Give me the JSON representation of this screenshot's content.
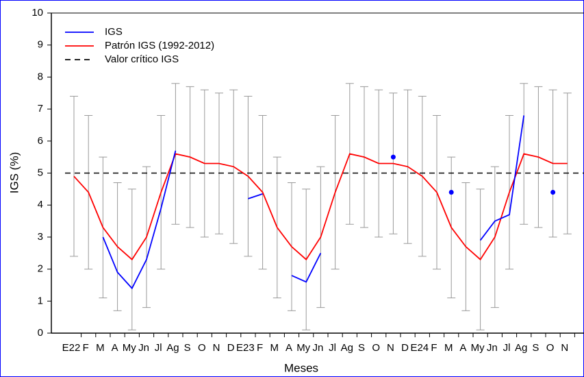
{
  "chart_data": {
    "type": "line",
    "y_label": "IGS (%)",
    "x_label": "Meses",
    "categories": [
      "E22",
      "F",
      "M",
      "A",
      "My",
      "Jn",
      "Jl",
      "Ag",
      "S",
      "O",
      "N",
      "D",
      "E23",
      "F",
      "M",
      "A",
      "My",
      "Jn",
      "Jl",
      "Ag",
      "S",
      "O",
      "N",
      "D",
      "E24",
      "F",
      "M",
      "A",
      "My",
      "Jn",
      "Jl",
      "Ag",
      "S",
      "O",
      "N"
    ],
    "series": [
      {
        "name": "IGS",
        "color": "#0000ff",
        "values": [
          null,
          null,
          3.0,
          1.9,
          1.4,
          2.3,
          3.9,
          5.7,
          null,
          null,
          null,
          null,
          4.2,
          4.35,
          null,
          1.8,
          1.6,
          2.5,
          null,
          null,
          null,
          null,
          5.5,
          null,
          null,
          null,
          4.4,
          null,
          2.9,
          3.5,
          3.7,
          6.8,
          null,
          4.4,
          null
        ]
      },
      {
        "name": "Patrón IGS (1992-2012)",
        "color": "#ff0000",
        "values": [
          4.9,
          4.4,
          3.3,
          2.7,
          2.3,
          3.0,
          4.4,
          5.6,
          5.5,
          5.3,
          5.3,
          5.2,
          4.9,
          4.4,
          3.3,
          2.7,
          2.3,
          3.0,
          4.4,
          5.6,
          5.5,
          5.3,
          5.3,
          5.2,
          4.9,
          4.4,
          3.3,
          2.7,
          2.3,
          3.0,
          4.4,
          5.6,
          5.5,
          5.3,
          5.3
        ],
        "errors": [
          2.5,
          2.4,
          2.2,
          2.0,
          2.2,
          2.2,
          2.4,
          2.2,
          2.2,
          2.3,
          2.2,
          2.4,
          2.5,
          2.4,
          2.2,
          2.0,
          2.2,
          2.2,
          2.4,
          2.2,
          2.2,
          2.3,
          2.2,
          2.4,
          2.5,
          2.4,
          2.2,
          2.0,
          2.2,
          2.2,
          2.4,
          2.2,
          2.2,
          2.3,
          2.2
        ],
        "error_color": "#999999"
      },
      {
        "name": "Valor crítico IGS",
        "color": "#000000",
        "dashed": true,
        "value": 5
      }
    ],
    "ylim": [
      0,
      10
    ],
    "yticks": [
      0,
      1,
      2,
      3,
      4,
      5,
      6,
      7,
      8,
      9,
      10
    ],
    "legend": "upper left"
  }
}
